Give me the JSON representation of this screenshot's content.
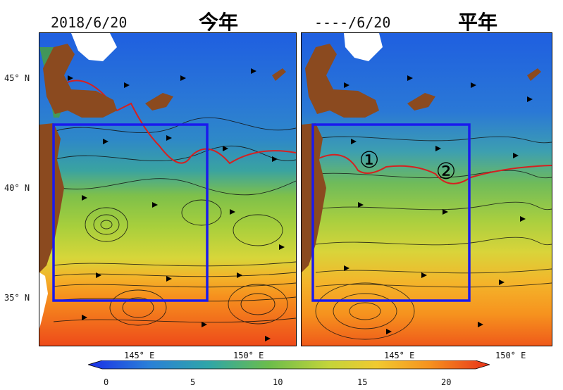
{
  "left_panel": {
    "date": "2018/6/20",
    "title": "今年"
  },
  "right_panel": {
    "date": "----/6/20",
    "title": "平年"
  },
  "latitude_labels": [
    "45° N",
    "40° N",
    "35° N"
  ],
  "longitude_labels": {
    "left": [
      "145° E",
      "150° E"
    ],
    "right": [
      "145° E",
      "150° E"
    ]
  },
  "region_labels": [
    "①",
    "②"
  ],
  "colorbar": {
    "ticks": [
      "0",
      "5",
      "10",
      "15",
      "20"
    ],
    "min": -1,
    "max": 23
  },
  "colors": {
    "land": "#8b4a1f",
    "box": "#1a1aee",
    "front": "#d62020"
  }
}
